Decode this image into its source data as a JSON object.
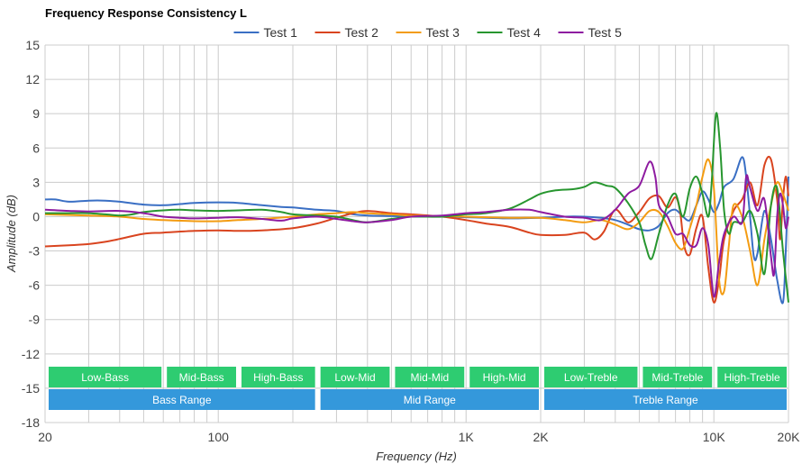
{
  "chart_data": {
    "type": "line",
    "title": "Frequency Response Consistency L",
    "xlabel": "Frequency (Hz)",
    "ylabel": "Amplitude (dB)",
    "xscale": "log",
    "xlim": [
      20,
      20000
    ],
    "ylim": [
      -18,
      15
    ],
    "yticks": [
      15,
      12,
      9,
      6,
      3,
      0,
      -3,
      -6,
      -9,
      -12,
      -15,
      -18
    ],
    "xticks": [
      {
        "value": 20,
        "label": "20"
      },
      {
        "value": 100,
        "label": "100"
      },
      {
        "value": 1000,
        "label": "1K"
      },
      {
        "value": 2000,
        "label": "2K"
      },
      {
        "value": 10000,
        "label": "10K"
      },
      {
        "value": 20000,
        "label": "20K"
      }
    ],
    "grid": true,
    "legend_position": "top",
    "colors": {
      "grid": "#cccccc",
      "band_green": "#2ecc71",
      "band_blue": "#3498db",
      "axis_text": "#444444"
    },
    "bands_top": [
      {
        "label": "Low-Bass",
        "from": 20,
        "to": 60
      },
      {
        "label": "Mid-Bass",
        "from": 60,
        "to": 120
      },
      {
        "label": "High-Bass",
        "from": 120,
        "to": 250
      },
      {
        "label": "Low-Mid",
        "from": 250,
        "to": 500
      },
      {
        "label": "Mid-Mid",
        "from": 500,
        "to": 1000
      },
      {
        "label": "High-Mid",
        "from": 1000,
        "to": 2000
      },
      {
        "label": "Low-Treble",
        "from": 2000,
        "to": 5000
      },
      {
        "label": "Mid-Treble",
        "from": 5000,
        "to": 10000
      },
      {
        "label": "High-Treble",
        "from": 10000,
        "to": 20000
      }
    ],
    "bands_bottom": [
      {
        "label": "Bass Range",
        "from": 20,
        "to": 250
      },
      {
        "label": "Mid Range",
        "from": 250,
        "to": 2000
      },
      {
        "label": "Treble Range",
        "from": 2000,
        "to": 20000
      }
    ],
    "series": [
      {
        "name": "Test 1",
        "color": "#3a6fc4",
        "points": [
          [
            20,
            1.5
          ],
          [
            22,
            1.5
          ],
          [
            25,
            1.3
          ],
          [
            30,
            1.4
          ],
          [
            35,
            1.4
          ],
          [
            40,
            1.3
          ],
          [
            50,
            1.05
          ],
          [
            60,
            1.0
          ],
          [
            70,
            1.1
          ],
          [
            80,
            1.2
          ],
          [
            100,
            1.25
          ],
          [
            120,
            1.2
          ],
          [
            150,
            1.0
          ],
          [
            180,
            0.85
          ],
          [
            200,
            0.8
          ],
          [
            250,
            0.6
          ],
          [
            300,
            0.5
          ],
          [
            350,
            0.2
          ],
          [
            400,
            0.1
          ],
          [
            500,
            0.05
          ],
          [
            600,
            0.0
          ],
          [
            700,
            0.0
          ],
          [
            800,
            0.0
          ],
          [
            1000,
            -0.05
          ],
          [
            1200,
            -0.1
          ],
          [
            1500,
            -0.15
          ],
          [
            2000,
            -0.1
          ],
          [
            2500,
            0.0
          ],
          [
            3000,
            0.0
          ],
          [
            3500,
            -0.1
          ],
          [
            4000,
            -0.3
          ],
          [
            4500,
            -0.7
          ],
          [
            5000,
            -1.1
          ],
          [
            5500,
            -1.2
          ],
          [
            6000,
            -0.8
          ],
          [
            6500,
            0.3
          ],
          [
            7000,
            0.6
          ],
          [
            7500,
            0.0
          ],
          [
            8000,
            -0.3
          ],
          [
            8500,
            1.0
          ],
          [
            9000,
            2.2
          ],
          [
            9500,
            1.5
          ],
          [
            10000,
            0.4
          ],
          [
            10500,
            1.2
          ],
          [
            11000,
            2.6
          ],
          [
            12000,
            3.3
          ],
          [
            13000,
            5.2
          ],
          [
            13500,
            3.5
          ],
          [
            14000,
            0.0
          ],
          [
            14500,
            -3.5
          ],
          [
            15000,
            -3.2
          ],
          [
            16000,
            0.5
          ],
          [
            17000,
            -2.0
          ],
          [
            18000,
            -5.5
          ],
          [
            19000,
            -7.5
          ],
          [
            19500,
            -3.0
          ],
          [
            20000,
            3.5
          ]
        ]
      },
      {
        "name": "Test 2",
        "color": "#d9441f",
        "points": [
          [
            20,
            -2.6
          ],
          [
            25,
            -2.5
          ],
          [
            30,
            -2.4
          ],
          [
            35,
            -2.2
          ],
          [
            40,
            -1.95
          ],
          [
            50,
            -1.5
          ],
          [
            60,
            -1.4
          ],
          [
            80,
            -1.25
          ],
          [
            100,
            -1.2
          ],
          [
            120,
            -1.25
          ],
          [
            150,
            -1.2
          ],
          [
            200,
            -1.0
          ],
          [
            250,
            -0.6
          ],
          [
            300,
            -0.1
          ],
          [
            350,
            0.3
          ],
          [
            400,
            0.5
          ],
          [
            500,
            0.3
          ],
          [
            600,
            0.2
          ],
          [
            800,
            0.0
          ],
          [
            1000,
            -0.3
          ],
          [
            1200,
            -0.6
          ],
          [
            1500,
            -0.9
          ],
          [
            1800,
            -1.4
          ],
          [
            2000,
            -1.6
          ],
          [
            2500,
            -1.6
          ],
          [
            3000,
            -1.4
          ],
          [
            3300,
            -2.0
          ],
          [
            3600,
            -1.3
          ],
          [
            4000,
            0.6
          ],
          [
            4500,
            -0.5
          ],
          [
            5000,
            0.4
          ],
          [
            5500,
            1.6
          ],
          [
            6000,
            1.8
          ],
          [
            6500,
            0.8
          ],
          [
            7000,
            1.7
          ],
          [
            7300,
            0.5
          ],
          [
            7600,
            -2.6
          ],
          [
            8000,
            -3.3
          ],
          [
            8500,
            -1.0
          ],
          [
            9000,
            0.0
          ],
          [
            9500,
            -4.5
          ],
          [
            10000,
            -7.5
          ],
          [
            10500,
            -5.5
          ],
          [
            11000,
            -2.0
          ],
          [
            12000,
            0.5
          ],
          [
            13000,
            1.5
          ],
          [
            14000,
            3.0
          ],
          [
            15000,
            1.0
          ],
          [
            16000,
            4.5
          ],
          [
            17000,
            5.0
          ],
          [
            18000,
            1.5
          ],
          [
            18500,
            -2.0
          ],
          [
            19000,
            1.5
          ],
          [
            19500,
            3.5
          ],
          [
            20000,
            1.8
          ]
        ]
      },
      {
        "name": "Test 3",
        "color": "#f39c12",
        "points": [
          [
            20,
            0.2
          ],
          [
            30,
            0.1
          ],
          [
            40,
            0.0
          ],
          [
            50,
            -0.2
          ],
          [
            60,
            -0.3
          ],
          [
            80,
            -0.4
          ],
          [
            100,
            -0.4
          ],
          [
            120,
            -0.3
          ],
          [
            150,
            -0.2
          ],
          [
            200,
            0.0
          ],
          [
            250,
            0.2
          ],
          [
            300,
            0.3
          ],
          [
            350,
            0.4
          ],
          [
            400,
            0.3
          ],
          [
            500,
            0.2
          ],
          [
            600,
            0.1
          ],
          [
            800,
            0.05
          ],
          [
            1000,
            0.0
          ],
          [
            1500,
            -0.1
          ],
          [
            2000,
            -0.1
          ],
          [
            2500,
            -0.3
          ],
          [
            3000,
            -0.5
          ],
          [
            3500,
            -0.3
          ],
          [
            4000,
            -0.7
          ],
          [
            4500,
            -1.1
          ],
          [
            5000,
            -0.5
          ],
          [
            5500,
            0.5
          ],
          [
            6000,
            0.4
          ],
          [
            6500,
            -0.8
          ],
          [
            7000,
            -2.3
          ],
          [
            7500,
            -2.8
          ],
          [
            8000,
            -1.0
          ],
          [
            8500,
            1.0
          ],
          [
            9000,
            3.5
          ],
          [
            9500,
            5.0
          ],
          [
            10000,
            2.5
          ],
          [
            10500,
            -5.5
          ],
          [
            11000,
            -6.5
          ],
          [
            11500,
            -2.5
          ],
          [
            12000,
            1.0
          ],
          [
            13000,
            0.0
          ],
          [
            14000,
            -3.0
          ],
          [
            15000,
            -6.0
          ],
          [
            16000,
            -2.0
          ],
          [
            17000,
            1.0
          ],
          [
            18000,
            3.0
          ],
          [
            19000,
            2.0
          ],
          [
            20000,
            0.5
          ]
        ]
      },
      {
        "name": "Test 4",
        "color": "#27962f",
        "points": [
          [
            20,
            0.3
          ],
          [
            25,
            0.3
          ],
          [
            30,
            0.3
          ],
          [
            35,
            0.2
          ],
          [
            40,
            0.1
          ],
          [
            45,
            0.2
          ],
          [
            50,
            0.4
          ],
          [
            60,
            0.55
          ],
          [
            70,
            0.6
          ],
          [
            80,
            0.55
          ],
          [
            100,
            0.5
          ],
          [
            120,
            0.55
          ],
          [
            150,
            0.6
          ],
          [
            180,
            0.4
          ],
          [
            200,
            0.2
          ],
          [
            250,
            0.1
          ],
          [
            300,
            0.0
          ],
          [
            350,
            -0.3
          ],
          [
            400,
            -0.5
          ],
          [
            500,
            -0.2
          ],
          [
            600,
            0.0
          ],
          [
            800,
            0.0
          ],
          [
            1000,
            0.2
          ],
          [
            1200,
            0.3
          ],
          [
            1500,
            0.7
          ],
          [
            1800,
            1.5
          ],
          [
            2000,
            2.0
          ],
          [
            2300,
            2.3
          ],
          [
            2700,
            2.4
          ],
          [
            3000,
            2.6
          ],
          [
            3300,
            3.0
          ],
          [
            3700,
            2.7
          ],
          [
            4000,
            2.5
          ],
          [
            4500,
            1.2
          ],
          [
            5000,
            -0.5
          ],
          [
            5300,
            -2.5
          ],
          [
            5600,
            -3.7
          ],
          [
            6000,
            -1.5
          ],
          [
            6500,
            1.0
          ],
          [
            7000,
            2.0
          ],
          [
            7500,
            0.0
          ],
          [
            8000,
            2.5
          ],
          [
            8500,
            3.5
          ],
          [
            9000,
            2.0
          ],
          [
            9500,
            0.0
          ],
          [
            9800,
            3.0
          ],
          [
            10200,
            9.0
          ],
          [
            10600,
            6.0
          ],
          [
            11000,
            0.5
          ],
          [
            11500,
            -1.5
          ],
          [
            12000,
            -0.5
          ],
          [
            13000,
            -0.5
          ],
          [
            14000,
            0.5
          ],
          [
            15000,
            -1.5
          ],
          [
            16000,
            -5.0
          ],
          [
            17000,
            1.0
          ],
          [
            18000,
            2.5
          ],
          [
            19000,
            -3.0
          ],
          [
            20000,
            -7.5
          ]
        ]
      },
      {
        "name": "Test 5",
        "color": "#8e1ba0",
        "points": [
          [
            20,
            0.6
          ],
          [
            25,
            0.5
          ],
          [
            30,
            0.45
          ],
          [
            40,
            0.5
          ],
          [
            50,
            0.3
          ],
          [
            60,
            0.0
          ],
          [
            70,
            -0.1
          ],
          [
            80,
            -0.15
          ],
          [
            100,
            -0.1
          ],
          [
            120,
            -0.05
          ],
          [
            150,
            -0.2
          ],
          [
            180,
            -0.35
          ],
          [
            200,
            -0.15
          ],
          [
            250,
            0.0
          ],
          [
            300,
            -0.2
          ],
          [
            350,
            -0.4
          ],
          [
            400,
            -0.5
          ],
          [
            500,
            -0.3
          ],
          [
            600,
            0.0
          ],
          [
            800,
            0.1
          ],
          [
            1000,
            0.3
          ],
          [
            1200,
            0.4
          ],
          [
            1500,
            0.6
          ],
          [
            1800,
            0.6
          ],
          [
            2000,
            0.4
          ],
          [
            2500,
            0.0
          ],
          [
            3000,
            -0.1
          ],
          [
            3500,
            -0.3
          ],
          [
            4000,
            0.6
          ],
          [
            4500,
            2.0
          ],
          [
            5000,
            2.7
          ],
          [
            5500,
            4.8
          ],
          [
            5800,
            3.5
          ],
          [
            6000,
            1.0
          ],
          [
            6500,
            0.0
          ],
          [
            7000,
            -1.5
          ],
          [
            7500,
            -1.5
          ],
          [
            8000,
            -2.5
          ],
          [
            8500,
            -2.5
          ],
          [
            9000,
            -1.0
          ],
          [
            9500,
            -2.5
          ],
          [
            10000,
            -7.0
          ],
          [
            10500,
            -4.0
          ],
          [
            11000,
            -1.5
          ],
          [
            12000,
            0.0
          ],
          [
            13000,
            -0.5
          ],
          [
            13500,
            3.5
          ],
          [
            14000,
            2.5
          ],
          [
            15000,
            0.5
          ],
          [
            16000,
            1.5
          ],
          [
            17000,
            -3.5
          ],
          [
            17500,
            -5.0
          ],
          [
            18000,
            0.0
          ],
          [
            18500,
            2.0
          ],
          [
            19000,
            1.0
          ],
          [
            19500,
            -1.0
          ],
          [
            20000,
            0.0
          ]
        ]
      }
    ]
  }
}
